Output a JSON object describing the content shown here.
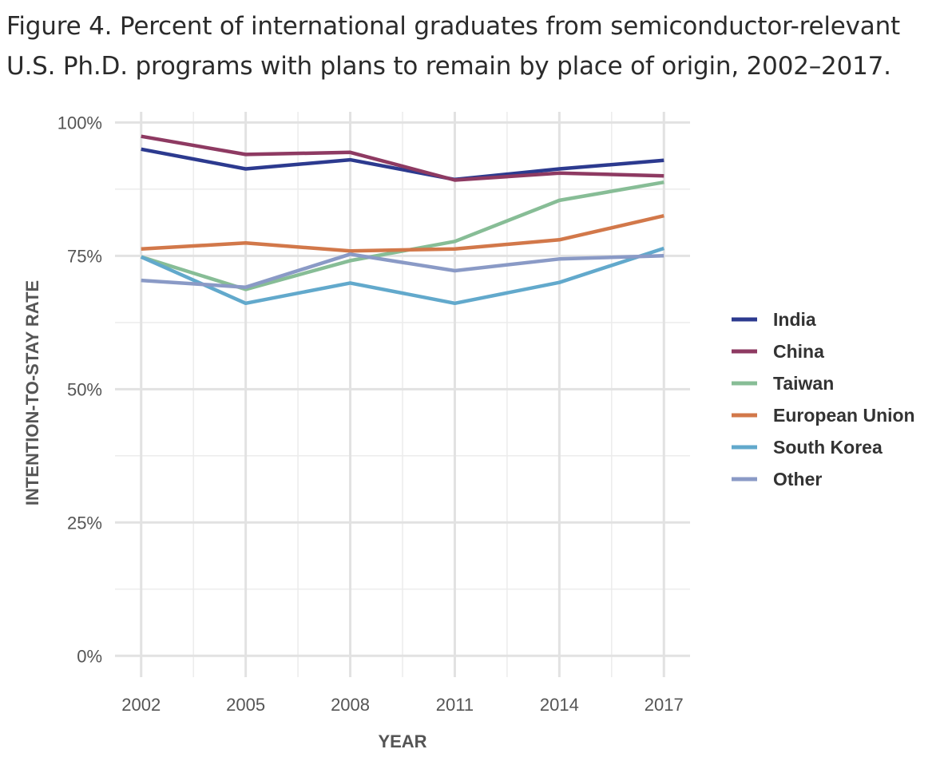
{
  "title_lines": [
    "Figure 4. Percent of international graduates from semiconductor-relevant",
    "U.S. Ph.D. programs with plans to remain by place of origin, 2002–2017."
  ],
  "chart_data": {
    "type": "line",
    "title": "Figure 4. Percent of international graduates from semiconductor-relevant U.S. Ph.D. programs with plans to remain by place of origin, 2002–2017.",
    "xlabel": "YEAR",
    "ylabel": "INTENTION-TO-STAY RATE",
    "x": [
      2002,
      2005,
      2008,
      2011,
      2014,
      2017
    ],
    "x_ticks": [
      "2002",
      "2005",
      "2008",
      "2011",
      "2014",
      "2017"
    ],
    "y_ticks": [
      {
        "value": 0,
        "label": "0%"
      },
      {
        "value": 25,
        "label": "25%"
      },
      {
        "value": 50,
        "label": "50%"
      },
      {
        "value": 75,
        "label": "75%"
      },
      {
        "value": 100,
        "label": "100%"
      }
    ],
    "xlim": [
      2001.25,
      2017.75
    ],
    "ylim": [
      -4,
      102
    ],
    "grid": true,
    "legend_position": "right",
    "series": [
      {
        "name": "India",
        "color": "#2c3a8f",
        "values": [
          95.0,
          91.3,
          93.0,
          89.3,
          91.3,
          92.9
        ]
      },
      {
        "name": "China",
        "color": "#8e3a62",
        "values": [
          97.4,
          94.0,
          94.4,
          89.2,
          90.5,
          90.0
        ]
      },
      {
        "name": "Taiwan",
        "color": "#87bd96",
        "values": [
          74.8,
          68.7,
          74.1,
          77.7,
          85.4,
          88.8
        ]
      },
      {
        "name": "European Union",
        "color": "#d2784a",
        "values": [
          76.3,
          77.4,
          75.9,
          76.3,
          78.0,
          82.5
        ]
      },
      {
        "name": "South Korea",
        "color": "#62a9cc",
        "values": [
          74.8,
          66.1,
          69.9,
          66.1,
          70.0,
          76.4
        ]
      },
      {
        "name": "Other",
        "color": "#8a9ac6",
        "values": [
          70.4,
          69.1,
          75.3,
          72.2,
          74.4,
          75.0
        ]
      }
    ]
  }
}
